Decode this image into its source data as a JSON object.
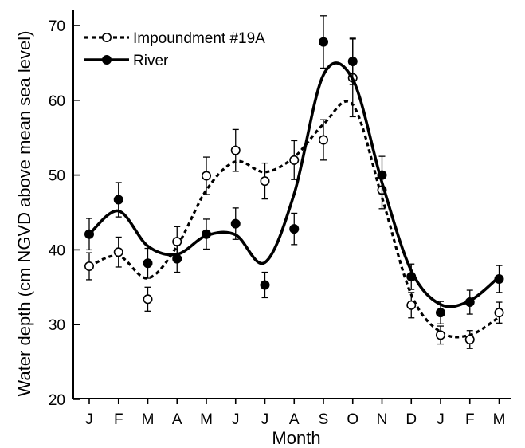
{
  "chart_data": {
    "type": "line",
    "title": "",
    "xlabel": "Month",
    "ylabel": "Water depth (cm NGVD above mean sea level)",
    "categories": [
      "J",
      "F",
      "M",
      "A",
      "M",
      "J",
      "J",
      "A",
      "S",
      "O",
      "N",
      "D",
      "J",
      "F",
      "M"
    ],
    "ylim": [
      20,
      72
    ],
    "yticks": [
      20,
      30,
      40,
      50,
      60,
      70
    ],
    "grid": false,
    "legend_position": "top-left",
    "series": [
      {
        "name": "Impoundment #19A",
        "marker": "open-circle",
        "line_style": "dotted",
        "values": [
          37.8,
          39.7,
          33.4,
          41.1,
          49.9,
          53.3,
          49.2,
          52.0,
          54.7,
          63.0,
          48.0,
          32.6,
          28.6,
          28.0,
          31.6
        ],
        "error": [
          1.8,
          2.0,
          1.6,
          2.0,
          2.5,
          2.8,
          2.4,
          2.6,
          2.7,
          5.2,
          2.5,
          1.7,
          1.2,
          1.2,
          1.4
        ],
        "fit_curve": [
          37.8,
          39.2,
          36.2,
          40.5,
          48.0,
          51.8,
          50.4,
          52.4,
          56.8,
          59.4,
          47.0,
          34.0,
          29.0,
          28.6,
          31.0
        ]
      },
      {
        "name": "River",
        "marker": "filled-circle",
        "line_style": "solid",
        "values": [
          42.1,
          46.7,
          38.2,
          38.8,
          42.1,
          43.5,
          35.3,
          42.8,
          67.8,
          65.2,
          50.0,
          36.4,
          31.6,
          33.0,
          36.1
        ],
        "error": [
          2.1,
          2.3,
          2.0,
          1.8,
          2.0,
          2.1,
          1.7,
          2.1,
          3.5,
          3.1,
          2.5,
          1.7,
          1.5,
          1.6,
          1.8
        ],
        "fit_curve": [
          42.1,
          45.2,
          40.5,
          39.4,
          41.9,
          42.0,
          38.3,
          47.5,
          63.4,
          62.8,
          49.0,
          37.2,
          32.7,
          33.2,
          36.4
        ]
      }
    ],
    "colors": {
      "axis": "#000000",
      "series": "#000000"
    }
  }
}
